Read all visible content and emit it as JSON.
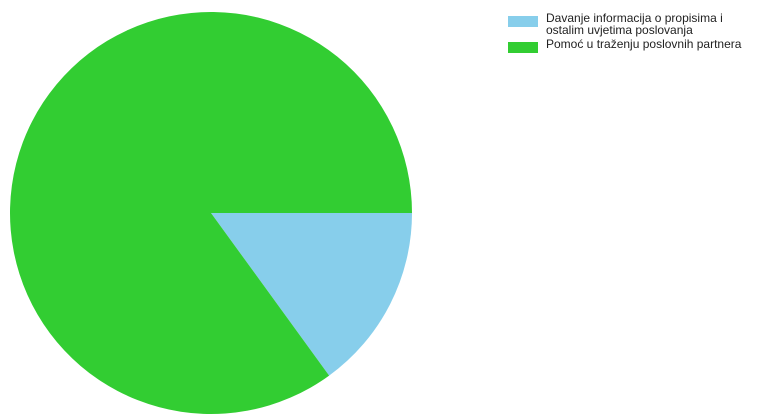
{
  "chart_data": {
    "type": "pie",
    "title": "",
    "categories": [
      "Davanje informacija o propisima i ostalim uvjetima poslovanja",
      "Pomoć u traženju poslovnih partnera"
    ],
    "values": [
      15,
      85
    ],
    "colors": [
      "#87ceeb",
      "#32cd32"
    ],
    "start_angle_deg": 0,
    "direction": "clockwise",
    "legend_position": "top-right"
  }
}
